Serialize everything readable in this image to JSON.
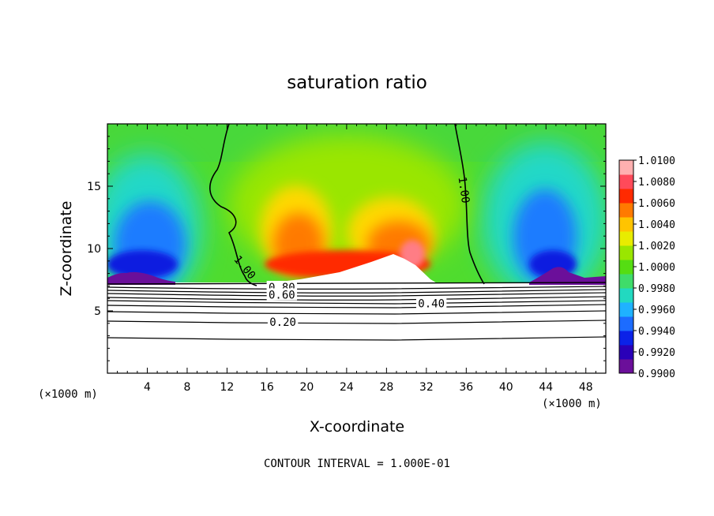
{
  "chart_data": {
    "type": "heatmap",
    "title": "saturation ratio",
    "xlabel": "X-coordinate",
    "ylabel": "Z-coordinate",
    "x_unit": "(×1000 m)",
    "y_unit": "(×1000 m)",
    "xlim": [
      0,
      50
    ],
    "ylim": [
      0,
      20
    ],
    "x_ticks": [
      4,
      8,
      12,
      16,
      20,
      24,
      28,
      32,
      36,
      40,
      44,
      48
    ],
    "y_ticks": [
      5,
      10,
      15
    ],
    "note": "CONTOUR INTERVAL = 1.000E-01",
    "colorbar": {
      "min": 0.99,
      "max": 1.01,
      "labels": [
        "1.0100",
        "1.0080",
        "1.0060",
        "1.0040",
        "1.0020",
        "1.0000",
        "0.9980",
        "0.9960",
        "0.9940",
        "0.9920",
        "0.9900"
      ],
      "colors": [
        "#6b0f9a",
        "#2a00b8",
        "#0b22e8",
        "#1c6cff",
        "#1fb2ff",
        "#22d9c0",
        "#3fdc6a",
        "#55dd12",
        "#9ae600",
        "#e8ec00",
        "#ffc400",
        "#ff7a00",
        "#ff2a00",
        "#ff4a5a",
        "#ffb0b0"
      ]
    },
    "contour_labels": [
      {
        "text": "1.00",
        "x": 35.8,
        "z": 14.7,
        "angle": 82
      },
      {
        "text": "1.00",
        "x": 13.8,
        "z": 8.5,
        "angle": 50
      },
      {
        "text": "0.80",
        "x": 17.5,
        "z": 6.9,
        "angle": 0
      },
      {
        "text": "0.60",
        "x": 17.5,
        "z": 6.3,
        "angle": 0
      },
      {
        "text": "0.40",
        "x": 32.5,
        "z": 5.6,
        "angle": 0
      },
      {
        "text": "0.20",
        "x": 17.6,
        "z": 4.1,
        "angle": 0
      }
    ]
  }
}
